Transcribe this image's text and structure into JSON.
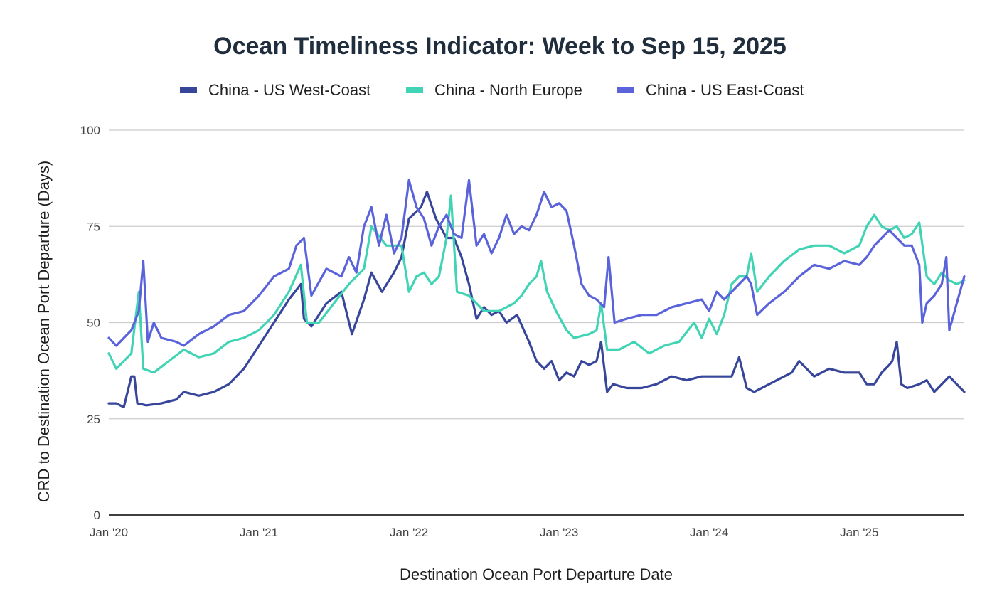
{
  "chart_data": {
    "type": "line",
    "title": "Ocean Timeliness Indicator: Week to Sep 15, 2025",
    "xlabel": "Destination Ocean Port Departure Date",
    "ylabel": "CRD to Destination Ocean Port Departure (Days)",
    "ylim": [
      0,
      100
    ],
    "yticks": [
      0,
      25,
      50,
      75,
      100
    ],
    "xlim": [
      2020.0,
      2025.7
    ],
    "xticks": [
      {
        "value": 2020,
        "label": "Jan '20"
      },
      {
        "value": 2021,
        "label": "Jan '21"
      },
      {
        "value": 2022,
        "label": "Jan '22"
      },
      {
        "value": 2023,
        "label": "Jan '23"
      },
      {
        "value": 2024,
        "label": "Jan '24"
      },
      {
        "value": 2025,
        "label": "Jan '25"
      }
    ],
    "grid": true,
    "legend_position": "top",
    "series": [
      {
        "name": "China - US West-Coast",
        "color": "#37459a",
        "points": [
          [
            2020.0,
            29
          ],
          [
            2020.05,
            29
          ],
          [
            2020.1,
            28
          ],
          [
            2020.15,
            36
          ],
          [
            2020.17,
            36
          ],
          [
            2020.19,
            29
          ],
          [
            2020.25,
            28.5
          ],
          [
            2020.35,
            29
          ],
          [
            2020.45,
            30
          ],
          [
            2020.5,
            32
          ],
          [
            2020.6,
            31
          ],
          [
            2020.7,
            32
          ],
          [
            2020.8,
            34
          ],
          [
            2020.9,
            38
          ],
          [
            2021.0,
            44
          ],
          [
            2021.1,
            50
          ],
          [
            2021.2,
            56
          ],
          [
            2021.28,
            60
          ],
          [
            2021.3,
            51
          ],
          [
            2021.35,
            49
          ],
          [
            2021.45,
            55
          ],
          [
            2021.55,
            58
          ],
          [
            2021.62,
            47
          ],
          [
            2021.7,
            56
          ],
          [
            2021.75,
            63
          ],
          [
            2021.82,
            58
          ],
          [
            2021.9,
            63
          ],
          [
            2021.95,
            67
          ],
          [
            2022.0,
            77
          ],
          [
            2022.08,
            80
          ],
          [
            2022.12,
            84
          ],
          [
            2022.18,
            77
          ],
          [
            2022.25,
            72
          ],
          [
            2022.3,
            72
          ],
          [
            2022.35,
            67
          ],
          [
            2022.4,
            60
          ],
          [
            2022.45,
            51
          ],
          [
            2022.5,
            54
          ],
          [
            2022.55,
            52
          ],
          [
            2022.6,
            53
          ],
          [
            2022.65,
            50
          ],
          [
            2022.72,
            52
          ],
          [
            2022.8,
            45
          ],
          [
            2022.85,
            40
          ],
          [
            2022.9,
            38
          ],
          [
            2022.95,
            40
          ],
          [
            2023.0,
            35
          ],
          [
            2023.05,
            37
          ],
          [
            2023.1,
            36
          ],
          [
            2023.15,
            40
          ],
          [
            2023.2,
            39
          ],
          [
            2023.25,
            40
          ],
          [
            2023.28,
            45
          ],
          [
            2023.32,
            32
          ],
          [
            2023.36,
            34
          ],
          [
            2023.45,
            33
          ],
          [
            2023.55,
            33
          ],
          [
            2023.65,
            34
          ],
          [
            2023.75,
            36
          ],
          [
            2023.85,
            35
          ],
          [
            2023.95,
            36
          ],
          [
            2024.05,
            36
          ],
          [
            2024.15,
            36
          ],
          [
            2024.2,
            41
          ],
          [
            2024.25,
            33
          ],
          [
            2024.3,
            32
          ],
          [
            2024.4,
            34
          ],
          [
            2024.5,
            36
          ],
          [
            2024.55,
            37
          ],
          [
            2024.6,
            40
          ],
          [
            2024.7,
            36
          ],
          [
            2024.8,
            38
          ],
          [
            2024.9,
            37
          ],
          [
            2025.0,
            37
          ],
          [
            2025.05,
            34
          ],
          [
            2025.1,
            34
          ],
          [
            2025.15,
            37
          ],
          [
            2025.2,
            39
          ],
          [
            2025.22,
            40
          ],
          [
            2025.25,
            45
          ],
          [
            2025.28,
            34
          ],
          [
            2025.32,
            33
          ],
          [
            2025.4,
            34
          ],
          [
            2025.45,
            35
          ],
          [
            2025.5,
            32
          ],
          [
            2025.55,
            34
          ],
          [
            2025.6,
            36
          ],
          [
            2025.65,
            34
          ],
          [
            2025.7,
            32
          ]
        ]
      },
      {
        "name": "China - North Europe",
        "color": "#40d4b5",
        "points": [
          [
            2020.0,
            42
          ],
          [
            2020.05,
            38
          ],
          [
            2020.1,
            40
          ],
          [
            2020.15,
            42
          ],
          [
            2020.2,
            58
          ],
          [
            2020.23,
            38
          ],
          [
            2020.3,
            37
          ],
          [
            2020.4,
            40
          ],
          [
            2020.5,
            43
          ],
          [
            2020.6,
            41
          ],
          [
            2020.7,
            42
          ],
          [
            2020.8,
            45
          ],
          [
            2020.9,
            46
          ],
          [
            2021.0,
            48
          ],
          [
            2021.1,
            52
          ],
          [
            2021.2,
            58
          ],
          [
            2021.28,
            65
          ],
          [
            2021.32,
            50
          ],
          [
            2021.4,
            50
          ],
          [
            2021.5,
            55
          ],
          [
            2021.6,
            60
          ],
          [
            2021.7,
            64
          ],
          [
            2021.75,
            75
          ],
          [
            2021.85,
            70
          ],
          [
            2021.95,
            70
          ],
          [
            2022.0,
            58
          ],
          [
            2022.05,
            62
          ],
          [
            2022.1,
            63
          ],
          [
            2022.15,
            60
          ],
          [
            2022.2,
            62
          ],
          [
            2022.25,
            72
          ],
          [
            2022.28,
            83
          ],
          [
            2022.32,
            58
          ],
          [
            2022.4,
            57
          ],
          [
            2022.5,
            53
          ],
          [
            2022.6,
            53
          ],
          [
            2022.7,
            55
          ],
          [
            2022.75,
            57
          ],
          [
            2022.8,
            60
          ],
          [
            2022.85,
            62
          ],
          [
            2022.88,
            66
          ],
          [
            2022.92,
            58
          ],
          [
            2022.98,
            53
          ],
          [
            2023.05,
            48
          ],
          [
            2023.1,
            46
          ],
          [
            2023.2,
            47
          ],
          [
            2023.25,
            48
          ],
          [
            2023.28,
            55
          ],
          [
            2023.32,
            43
          ],
          [
            2023.4,
            43
          ],
          [
            2023.5,
            45
          ],
          [
            2023.6,
            42
          ],
          [
            2023.7,
            44
          ],
          [
            2023.8,
            45
          ],
          [
            2023.9,
            50
          ],
          [
            2023.95,
            46
          ],
          [
            2024.0,
            51
          ],
          [
            2024.05,
            47
          ],
          [
            2024.1,
            52
          ],
          [
            2024.15,
            60
          ],
          [
            2024.2,
            62
          ],
          [
            2024.25,
            62
          ],
          [
            2024.28,
            68
          ],
          [
            2024.32,
            58
          ],
          [
            2024.4,
            62
          ],
          [
            2024.5,
            66
          ],
          [
            2024.6,
            69
          ],
          [
            2024.7,
            70
          ],
          [
            2024.8,
            70
          ],
          [
            2024.9,
            68
          ],
          [
            2025.0,
            70
          ],
          [
            2025.05,
            75
          ],
          [
            2025.1,
            78
          ],
          [
            2025.15,
            75
          ],
          [
            2025.2,
            74
          ],
          [
            2025.25,
            75
          ],
          [
            2025.3,
            72
          ],
          [
            2025.35,
            73
          ],
          [
            2025.4,
            76
          ],
          [
            2025.45,
            62
          ],
          [
            2025.5,
            60
          ],
          [
            2025.55,
            63
          ],
          [
            2025.6,
            61
          ],
          [
            2025.65,
            60
          ],
          [
            2025.7,
            61
          ]
        ]
      },
      {
        "name": "China - US East-Coast",
        "color": "#5b63db",
        "points": [
          [
            2020.0,
            46
          ],
          [
            2020.05,
            44
          ],
          [
            2020.1,
            46
          ],
          [
            2020.15,
            48
          ],
          [
            2020.2,
            53
          ],
          [
            2020.23,
            66
          ],
          [
            2020.26,
            45
          ],
          [
            2020.3,
            50
          ],
          [
            2020.35,
            46
          ],
          [
            2020.45,
            45
          ],
          [
            2020.5,
            44
          ],
          [
            2020.6,
            47
          ],
          [
            2020.7,
            49
          ],
          [
            2020.8,
            52
          ],
          [
            2020.9,
            53
          ],
          [
            2021.0,
            57
          ],
          [
            2021.1,
            62
          ],
          [
            2021.2,
            64
          ],
          [
            2021.25,
            70
          ],
          [
            2021.3,
            72
          ],
          [
            2021.35,
            57
          ],
          [
            2021.45,
            64
          ],
          [
            2021.55,
            62
          ],
          [
            2021.6,
            67
          ],
          [
            2021.65,
            63
          ],
          [
            2021.7,
            75
          ],
          [
            2021.75,
            80
          ],
          [
            2021.8,
            70
          ],
          [
            2021.85,
            78
          ],
          [
            2021.9,
            68
          ],
          [
            2021.95,
            72
          ],
          [
            2022.0,
            87
          ],
          [
            2022.05,
            80
          ],
          [
            2022.1,
            77
          ],
          [
            2022.15,
            70
          ],
          [
            2022.2,
            75
          ],
          [
            2022.25,
            78
          ],
          [
            2022.3,
            73
          ],
          [
            2022.35,
            72
          ],
          [
            2022.4,
            87
          ],
          [
            2022.45,
            70
          ],
          [
            2022.5,
            73
          ],
          [
            2022.55,
            68
          ],
          [
            2022.6,
            72
          ],
          [
            2022.65,
            78
          ],
          [
            2022.7,
            73
          ],
          [
            2022.75,
            75
          ],
          [
            2022.8,
            74
          ],
          [
            2022.85,
            78
          ],
          [
            2022.9,
            84
          ],
          [
            2022.95,
            80
          ],
          [
            2023.0,
            81
          ],
          [
            2023.05,
            79
          ],
          [
            2023.1,
            70
          ],
          [
            2023.15,
            60
          ],
          [
            2023.2,
            57
          ],
          [
            2023.25,
            56
          ],
          [
            2023.3,
            54
          ],
          [
            2023.33,
            67
          ],
          [
            2023.37,
            50
          ],
          [
            2023.45,
            51
          ],
          [
            2023.55,
            52
          ],
          [
            2023.65,
            52
          ],
          [
            2023.75,
            54
          ],
          [
            2023.85,
            55
          ],
          [
            2023.95,
            56
          ],
          [
            2024.0,
            53
          ],
          [
            2024.05,
            58
          ],
          [
            2024.1,
            56
          ],
          [
            2024.15,
            58
          ],
          [
            2024.2,
            60
          ],
          [
            2024.25,
            62
          ],
          [
            2024.28,
            60
          ],
          [
            2024.32,
            52
          ],
          [
            2024.4,
            55
          ],
          [
            2024.5,
            58
          ],
          [
            2024.6,
            62
          ],
          [
            2024.7,
            65
          ],
          [
            2024.8,
            64
          ],
          [
            2024.9,
            66
          ],
          [
            2025.0,
            65
          ],
          [
            2025.05,
            67
          ],
          [
            2025.1,
            70
          ],
          [
            2025.15,
            72
          ],
          [
            2025.2,
            74
          ],
          [
            2025.25,
            72
          ],
          [
            2025.3,
            70
          ],
          [
            2025.35,
            70
          ],
          [
            2025.4,
            65
          ],
          [
            2025.42,
            50
          ],
          [
            2025.45,
            55
          ],
          [
            2025.5,
            57
          ],
          [
            2025.55,
            60
          ],
          [
            2025.58,
            67
          ],
          [
            2025.6,
            48
          ],
          [
            2025.65,
            55
          ],
          [
            2025.7,
            62
          ]
        ]
      }
    ]
  }
}
